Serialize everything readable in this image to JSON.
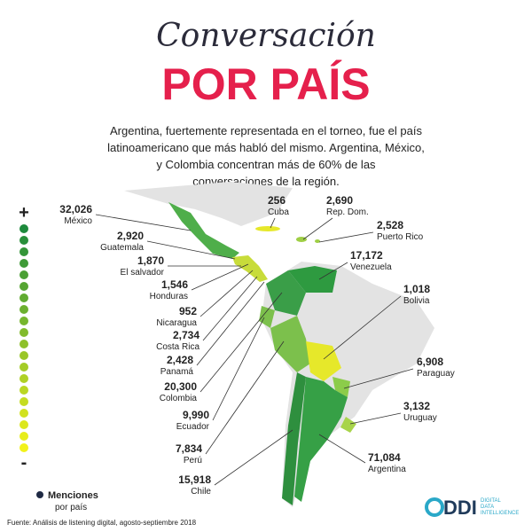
{
  "header": {
    "title_script": "Conversación",
    "title": "POR PAÍS",
    "intro": [
      "Argentina, fuertemente representada en el torneo, fue el país",
      "latinoamericano que más habló del mismo. Argentina, México,",
      "y Colombia concentran más de 60% de las",
      "conversaciones de la región."
    ]
  },
  "countries": [
    {
      "value": "32,026",
      "name": "México"
    },
    {
      "value": "2,920",
      "name": "Guatemala"
    },
    {
      "value": "1,870",
      "name": "El salvador"
    },
    {
      "value": "1,546",
      "name": "Honduras"
    },
    {
      "value": "952",
      "name": "Nicaragua"
    },
    {
      "value": "2,734",
      "name": "Costa Rica"
    },
    {
      "value": "2,428",
      "name": "Panamá"
    },
    {
      "value": "20,300",
      "name": "Colombia"
    },
    {
      "value": "9,990",
      "name": "Ecuador"
    },
    {
      "value": "7,834",
      "name": "Perú"
    },
    {
      "value": "15,918",
      "name": "Chile"
    },
    {
      "value": "256",
      "name": "Cuba"
    },
    {
      "value": "2,690",
      "name": "Rep. Dom."
    },
    {
      "value": "2,528",
      "name": "Puerto Rico"
    },
    {
      "value": "17,172",
      "name": "Venezuela"
    },
    {
      "value": "1,018",
      "name": "Bolivia"
    },
    {
      "value": "6,908",
      "name": "Paraguay"
    },
    {
      "value": "3,132",
      "name": "Uruguay"
    },
    {
      "value": "71,084",
      "name": "Argentina"
    }
  ],
  "legend": {
    "max": "+",
    "min": "-",
    "title": "Menciones",
    "subtitle": "por país"
  },
  "footer": {
    "source": "Fuente: Análisis de listening digital, agosto-septiembre 2018",
    "logo": "DDI",
    "logo_text": [
      "DIGITAL",
      "DATA",
      "INTELLIGENCE"
    ]
  }
}
